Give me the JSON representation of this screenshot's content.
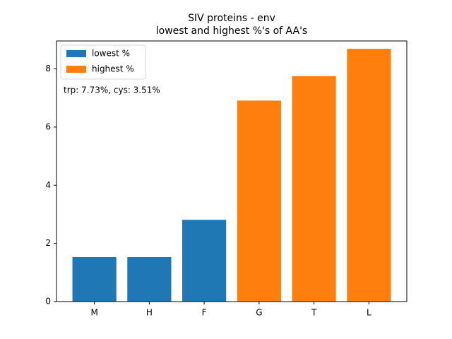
{
  "chart_data": {
    "type": "bar",
    "title": "SIV proteins - env",
    "subtitle": "lowest and highest %'s of AA's",
    "annotation": "trp: 7.73%, cys: 3.51%",
    "categories": [
      "M",
      "H",
      "F",
      "G",
      "T",
      "L"
    ],
    "series": [
      {
        "name": "lowest %",
        "color": "#1f77b4",
        "values": [
          1.53,
          1.53,
          2.81,
          null,
          null,
          null
        ]
      },
      {
        "name": "highest %",
        "color": "#ff7f0e",
        "values": [
          null,
          null,
          null,
          6.91,
          7.75,
          8.69
        ]
      }
    ],
    "ylim": [
      0,
      8.96
    ],
    "yticks": [
      0,
      2,
      4,
      6,
      8
    ],
    "legend": "upper left"
  }
}
